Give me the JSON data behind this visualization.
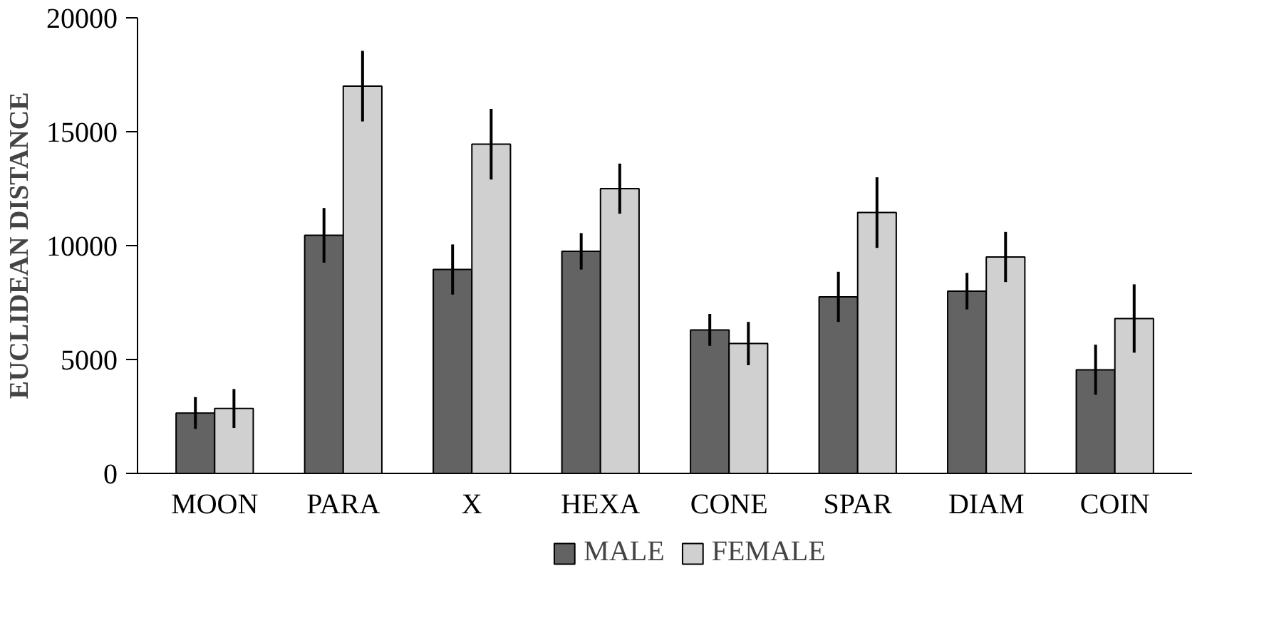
{
  "chart_data": {
    "type": "bar",
    "ylabel": "EUCLIDEAN DISTANCE",
    "categories": [
      "MOON",
      "PARA",
      "X",
      "HEXA",
      "CONE",
      "SPAR",
      "DIAM",
      "COIN"
    ],
    "series": [
      {
        "name": "MALE",
        "color": "#636363",
        "values": [
          2650,
          10450,
          8950,
          9750,
          6300,
          7750,
          8000,
          4550
        ],
        "errors": [
          700,
          1200,
          1100,
          800,
          700,
          1100,
          800,
          1100
        ]
      },
      {
        "name": "FEMALE",
        "color": "#d0d0d0",
        "values": [
          2850,
          17000,
          14450,
          12500,
          5700,
          11450,
          9500,
          6800
        ],
        "errors": [
          850,
          1550,
          1550,
          1100,
          950,
          1550,
          1100,
          1500
        ]
      }
    ],
    "ylim": [
      0,
      20000
    ],
    "yticks": [
      0,
      5000,
      10000,
      15000,
      20000
    ],
    "grid": false,
    "legend": "bottom"
  }
}
